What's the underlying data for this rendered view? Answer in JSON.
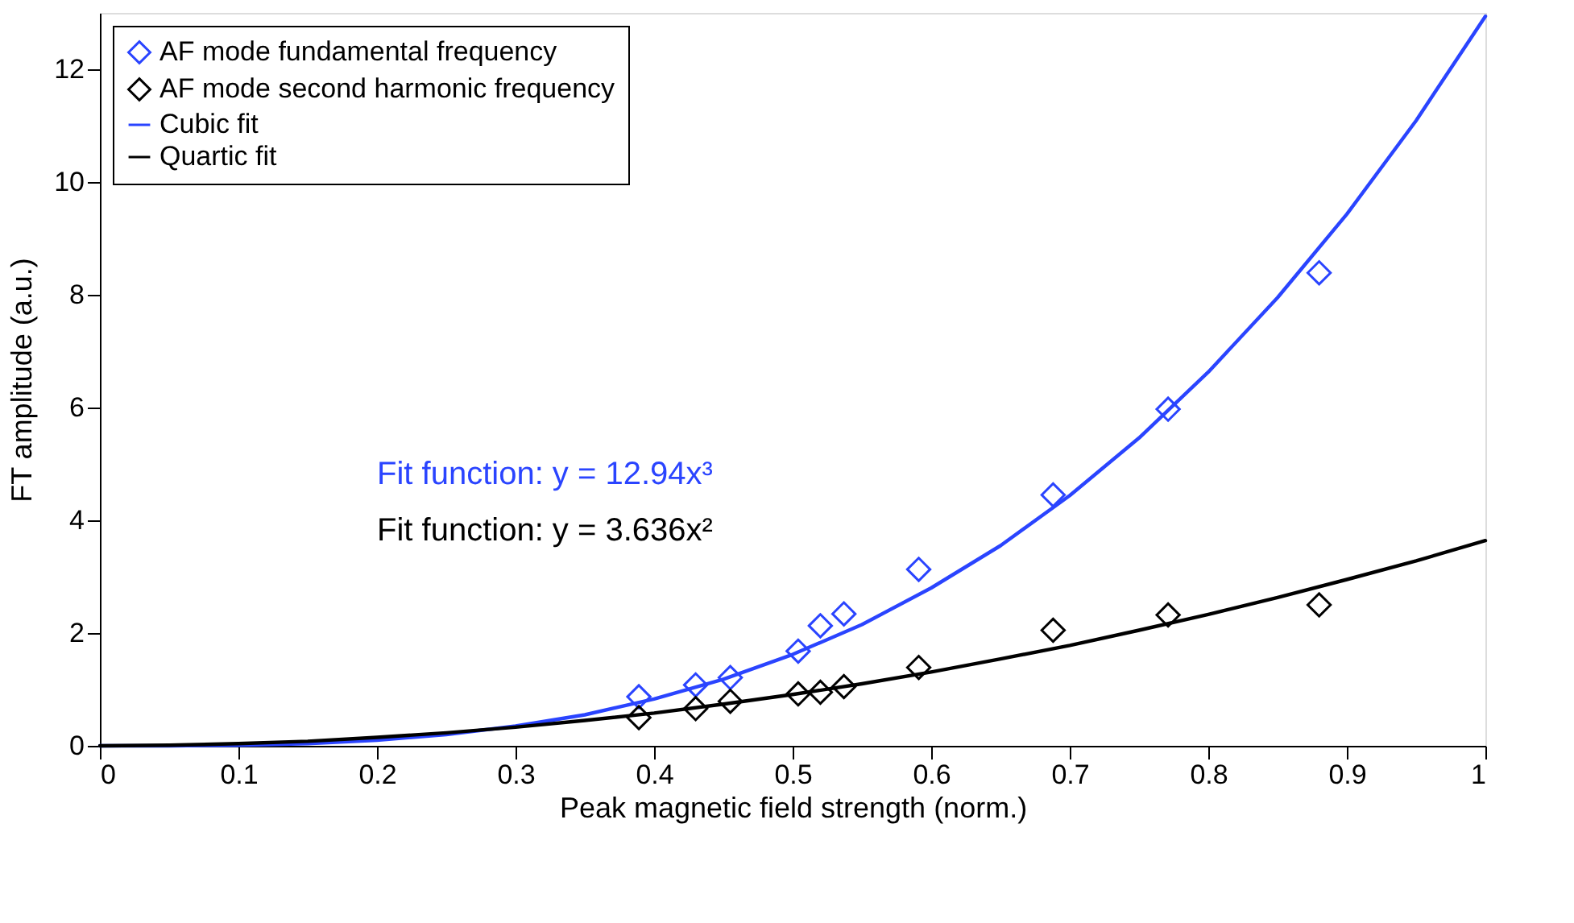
{
  "chart_data": {
    "type": "scatter",
    "xlabel": "Peak magnetic field strength (norm.)",
    "ylabel": "FT amplitude (a.u.)",
    "x": [
      0.389,
      0.43,
      0.455,
      0.504,
      0.52,
      0.537,
      0.591,
      0.688,
      0.771,
      0.88
    ],
    "series": [
      {
        "name": "AF mode fundamental frequency",
        "color": "#2a44ff",
        "marker": "diamond",
        "values": [
          0.87,
          1.08,
          1.21,
          1.68,
          2.13,
          2.34,
          3.13,
          4.45,
          5.97,
          8.39
        ]
      },
      {
        "name": "AF mode second harmonic frequency",
        "color": "#000000",
        "marker": "diamond",
        "values": [
          0.5,
          0.66,
          0.79,
          0.92,
          0.95,
          1.05,
          1.39,
          2.05,
          2.32,
          2.5
        ]
      },
      {
        "name": "Cubic fit",
        "color": "#2a44ff",
        "type": "line",
        "line_style": "solid",
        "x": [
          0,
          0.05,
          0.1,
          0.15,
          0.2,
          0.25,
          0.3,
          0.35,
          0.4,
          0.45,
          0.5,
          0.55,
          0.6,
          0.65,
          0.7,
          0.75,
          0.8,
          0.85,
          0.9,
          0.95,
          1
        ],
        "values": [
          0,
          0,
          0.01,
          0.04,
          0.1,
          0.2,
          0.35,
          0.55,
          0.83,
          1.18,
          1.62,
          2.15,
          2.8,
          3.55,
          4.44,
          5.46,
          6.63,
          7.95,
          9.43,
          11.09,
          12.94
        ]
      },
      {
        "name": "Quartic fit",
        "color": "#000000",
        "type": "line",
        "line_style": "solid",
        "x": [
          0,
          0.05,
          0.1,
          0.15,
          0.2,
          0.25,
          0.3,
          0.35,
          0.4,
          0.45,
          0.5,
          0.55,
          0.6,
          0.65,
          0.7,
          0.75,
          0.8,
          0.85,
          0.9,
          0.95,
          1
        ],
        "values": [
          0,
          0.01,
          0.04,
          0.08,
          0.15,
          0.23,
          0.33,
          0.45,
          0.58,
          0.74,
          0.91,
          1.1,
          1.31,
          1.54,
          1.78,
          2.05,
          2.33,
          2.63,
          2.95,
          3.28,
          3.64
        ]
      }
    ],
    "annotations": [
      "Fit function: y = 12.94x³",
      "Fit function: y = 3.636x²"
    ],
    "xlim": [
      0,
      1
    ],
    "ylim": [
      0,
      13
    ],
    "xticks": [
      0,
      0.1,
      0.2,
      0.3,
      0.4,
      0.5,
      0.6,
      0.7,
      0.8,
      0.9,
      1
    ],
    "yticks": [
      0,
      2,
      4,
      6,
      8,
      10,
      12
    ],
    "grid": false,
    "legend": "top left"
  }
}
